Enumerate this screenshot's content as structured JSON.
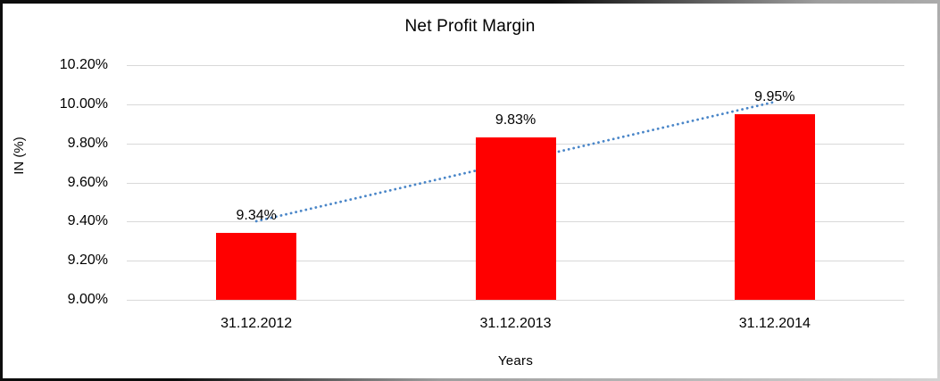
{
  "chart_data": {
    "type": "bar",
    "title": "Net Profit Margin",
    "xlabel": "Years",
    "ylabel": "IN (%)",
    "categories": [
      "31.12.2012",
      "31.12.2013",
      "31.12.2014"
    ],
    "series": [
      {
        "name": "Net Profit Margin",
        "values": [
          9.34,
          9.83,
          9.95
        ]
      }
    ],
    "value_labels": [
      "9.34%",
      "9.83%",
      "9.95%"
    ],
    "y_ticks": [
      "10.20%",
      "10.00%",
      "9.80%",
      "9.60%",
      "9.40%",
      "9.20%",
      "9.00%"
    ],
    "ylim": [
      9.0,
      10.2
    ],
    "grid": true,
    "legend_position": "none",
    "bar_color": "#ff0000",
    "gridline_color": "#d9d9d9",
    "trendline": {
      "type": "linear",
      "style": "dotted",
      "color": "#4a86c8",
      "y_start_pct": 9.402,
      "y_end_pct": 10.012
    }
  }
}
